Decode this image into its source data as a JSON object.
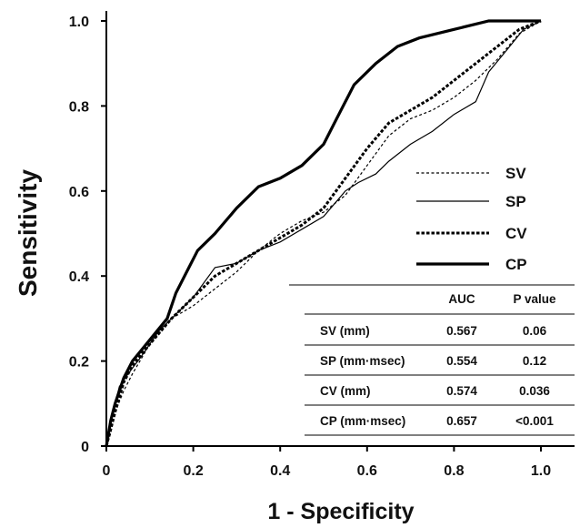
{
  "chart_data": {
    "type": "line",
    "xlabel": "1 - Specificity",
    "ylabel": "Sensitivity",
    "xlim": [
      0,
      1.0
    ],
    "ylim": [
      0,
      1.0
    ],
    "x_ticks": [
      "0",
      "0.2",
      "0.4",
      "0.6",
      "0.8",
      "1.0"
    ],
    "y_ticks": [
      "0",
      "0.2",
      "0.4",
      "0.6",
      "0.8",
      "1.0"
    ],
    "grid": false,
    "legend_position": "right",
    "series": [
      {
        "name": "SV",
        "style": "thin-dashed",
        "points": [
          [
            0,
            0
          ],
          [
            0.01,
            0.03
          ],
          [
            0.02,
            0.08
          ],
          [
            0.04,
            0.13
          ],
          [
            0.06,
            0.17
          ],
          [
            0.1,
            0.24
          ],
          [
            0.15,
            0.3
          ],
          [
            0.2,
            0.33
          ],
          [
            0.25,
            0.37
          ],
          [
            0.3,
            0.41
          ],
          [
            0.35,
            0.46
          ],
          [
            0.4,
            0.5
          ],
          [
            0.45,
            0.53
          ],
          [
            0.5,
            0.55
          ],
          [
            0.55,
            0.59
          ],
          [
            0.6,
            0.66
          ],
          [
            0.65,
            0.73
          ],
          [
            0.7,
            0.77
          ],
          [
            0.75,
            0.79
          ],
          [
            0.8,
            0.82
          ],
          [
            0.85,
            0.86
          ],
          [
            0.9,
            0.91
          ],
          [
            0.95,
            0.97
          ],
          [
            1,
            1
          ]
        ]
      },
      {
        "name": "SP",
        "style": "thin-solid",
        "points": [
          [
            0,
            0
          ],
          [
            0.01,
            0.05
          ],
          [
            0.02,
            0.1
          ],
          [
            0.03,
            0.14
          ],
          [
            0.05,
            0.17
          ],
          [
            0.08,
            0.21
          ],
          [
            0.12,
            0.27
          ],
          [
            0.16,
            0.31
          ],
          [
            0.2,
            0.35
          ],
          [
            0.25,
            0.42
          ],
          [
            0.3,
            0.43
          ],
          [
            0.35,
            0.46
          ],
          [
            0.4,
            0.48
          ],
          [
            0.45,
            0.51
          ],
          [
            0.5,
            0.54
          ],
          [
            0.55,
            0.6
          ],
          [
            0.58,
            0.62
          ],
          [
            0.62,
            0.64
          ],
          [
            0.65,
            0.67
          ],
          [
            0.7,
            0.71
          ],
          [
            0.75,
            0.74
          ],
          [
            0.8,
            0.78
          ],
          [
            0.85,
            0.81
          ],
          [
            0.88,
            0.88
          ],
          [
            0.92,
            0.93
          ],
          [
            0.96,
            0.98
          ],
          [
            1,
            1
          ]
        ]
      },
      {
        "name": "CV",
        "style": "thick-dashed",
        "points": [
          [
            0,
            0
          ],
          [
            0.02,
            0.08
          ],
          [
            0.04,
            0.15
          ],
          [
            0.06,
            0.19
          ],
          [
            0.1,
            0.24
          ],
          [
            0.15,
            0.3
          ],
          [
            0.2,
            0.35
          ],
          [
            0.25,
            0.4
          ],
          [
            0.3,
            0.43
          ],
          [
            0.35,
            0.46
          ],
          [
            0.4,
            0.49
          ],
          [
            0.45,
            0.52
          ],
          [
            0.5,
            0.56
          ],
          [
            0.55,
            0.63
          ],
          [
            0.6,
            0.7
          ],
          [
            0.65,
            0.76
          ],
          [
            0.7,
            0.79
          ],
          [
            0.75,
            0.82
          ],
          [
            0.8,
            0.86
          ],
          [
            0.85,
            0.9
          ],
          [
            0.9,
            0.94
          ],
          [
            0.95,
            0.98
          ],
          [
            1,
            1
          ]
        ]
      },
      {
        "name": "CP",
        "style": "thick-solid",
        "points": [
          [
            0,
            0
          ],
          [
            0.01,
            0.06
          ],
          [
            0.02,
            0.1
          ],
          [
            0.04,
            0.16
          ],
          [
            0.06,
            0.2
          ],
          [
            0.1,
            0.25
          ],
          [
            0.14,
            0.3
          ],
          [
            0.16,
            0.36
          ],
          [
            0.19,
            0.42
          ],
          [
            0.21,
            0.46
          ],
          [
            0.25,
            0.5
          ],
          [
            0.3,
            0.56
          ],
          [
            0.35,
            0.61
          ],
          [
            0.4,
            0.63
          ],
          [
            0.45,
            0.66
          ],
          [
            0.5,
            0.71
          ],
          [
            0.53,
            0.77
          ],
          [
            0.57,
            0.85
          ],
          [
            0.62,
            0.9
          ],
          [
            0.67,
            0.94
          ],
          [
            0.72,
            0.96
          ],
          [
            0.8,
            0.98
          ],
          [
            0.88,
            1
          ],
          [
            1,
            1
          ]
        ]
      }
    ]
  },
  "legend": {
    "items": [
      {
        "label": "SV",
        "style": "thin-dashed"
      },
      {
        "label": "SP",
        "style": "thin-solid"
      },
      {
        "label": "CV",
        "style": "thick-dashed"
      },
      {
        "label": "CP",
        "style": "thick-solid"
      }
    ]
  },
  "auc_table": {
    "headers": [
      "",
      "AUC",
      "P value"
    ],
    "rows": [
      [
        "SV (mm)",
        "0.567",
        "0.06"
      ],
      [
        "SP (mm·msec)",
        "0.554",
        "0.12"
      ],
      [
        "CV (mm)",
        "0.574",
        "0.036"
      ],
      [
        "CP (mm·msec)",
        "0.657",
        "<0.001"
      ]
    ]
  }
}
